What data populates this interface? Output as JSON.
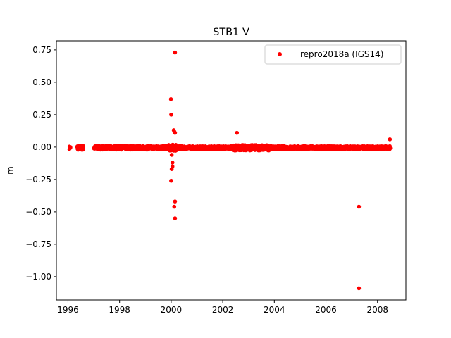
{
  "chart_data": {
    "type": "scatter",
    "title": "STB1 V",
    "xlabel": "",
    "ylabel": "m",
    "xlim": [
      1995.55,
      2009.1
    ],
    "ylim": [
      -1.18,
      0.82
    ],
    "x_ticks": [
      1996,
      1998,
      2000,
      2002,
      2004,
      2006,
      2008
    ],
    "x_tick_labels": [
      "1996",
      "1998",
      "2000",
      "2002",
      "2004",
      "2006",
      "2008"
    ],
    "y_ticks": [
      0.75,
      0.5,
      0.25,
      0.0,
      -0.25,
      -0.5,
      -0.75,
      -1.0
    ],
    "y_tick_labels": [
      "0.75",
      "0.50",
      "0.25",
      "0.00",
      "−0.25",
      "−0.50",
      "−0.75",
      "−1.00"
    ],
    "grid": false,
    "legend_position": "top-right",
    "series": [
      {
        "name": "repro2018a (IGS14)",
        "color": "#ff0000",
        "marker": "circle",
        "outliers": [
          {
            "x": 2000.15,
            "y": 0.73
          },
          {
            "x": 1999.99,
            "y": 0.37
          },
          {
            "x": 2000.0,
            "y": 0.25
          },
          {
            "x": 2000.1,
            "y": 0.13
          },
          {
            "x": 2000.12,
            "y": 0.12
          },
          {
            "x": 2000.15,
            "y": 0.11
          },
          {
            "x": 2002.55,
            "y": 0.11
          },
          {
            "x": 2008.48,
            "y": 0.06
          },
          {
            "x": 2000.02,
            "y": -0.06
          },
          {
            "x": 2000.05,
            "y": -0.12
          },
          {
            "x": 2000.05,
            "y": -0.15
          },
          {
            "x": 2000.02,
            "y": -0.17
          },
          {
            "x": 2000.0,
            "y": -0.26
          },
          {
            "x": 2000.15,
            "y": -0.42
          },
          {
            "x": 2000.12,
            "y": -0.46
          },
          {
            "x": 2000.15,
            "y": -0.55
          },
          {
            "x": 2007.28,
            "y": -0.46
          },
          {
            "x": 2007.28,
            "y": -1.09
          }
        ],
        "dense_segments": [
          {
            "x_start": 1996.05,
            "x_end": 1996.1,
            "y_spread": 0.012
          },
          {
            "x_start": 1996.35,
            "x_end": 1996.6,
            "y_spread": 0.018
          },
          {
            "x_start": 1997.0,
            "x_end": 1999.9,
            "y_spread": 0.015
          },
          {
            "x_start": 1999.9,
            "x_end": 2000.2,
            "y_spread": 0.025
          },
          {
            "x_start": 2000.2,
            "x_end": 2002.4,
            "y_spread": 0.013
          },
          {
            "x_start": 2002.4,
            "x_end": 2003.8,
            "y_spread": 0.022
          },
          {
            "x_start": 2003.8,
            "x_end": 2008.5,
            "y_spread": 0.013
          }
        ]
      }
    ]
  }
}
